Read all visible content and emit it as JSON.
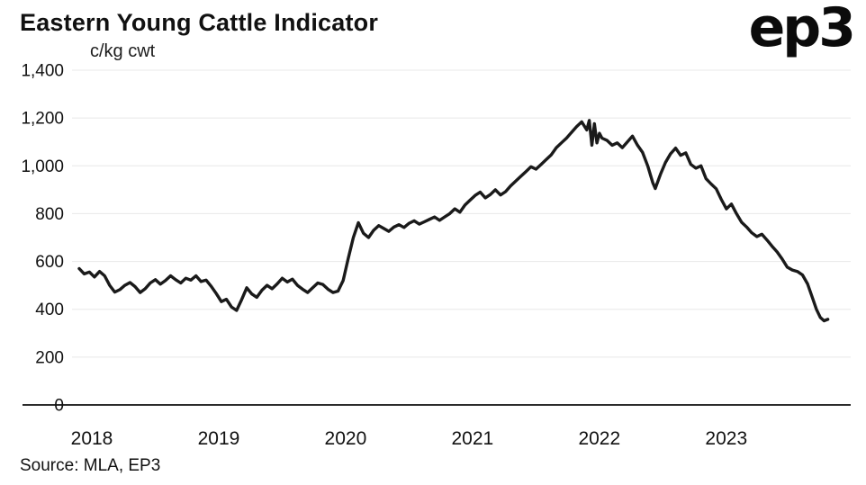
{
  "header": {
    "title": "Eastern Young Cattle Indicator",
    "logo": "ep3"
  },
  "footer": {
    "source": "Source: MLA, EP3"
  },
  "chart_data": {
    "type": "line",
    "title": "Eastern Young Cattle Indicator",
    "xlabel": "",
    "ylabel": "c/kg cwt",
    "ylim": [
      0,
      1400
    ],
    "xlim": [
      2018,
      2024.08
    ],
    "yticks": [
      0,
      200,
      400,
      600,
      800,
      1000,
      1200,
      1400
    ],
    "ytick_labels": [
      "0",
      "200",
      "400",
      "600",
      "800",
      "1,000",
      "1,200",
      "1,400"
    ],
    "xticks": [
      2018,
      2019,
      2020,
      2021,
      2022,
      2023
    ],
    "xtick_labels": [
      "2018",
      "2019",
      "2020",
      "2021",
      "2022",
      "2023"
    ],
    "grid": "horizontal",
    "legend": "none",
    "line_color": "#1a1a1a",
    "grid_color": "#e8e8e8",
    "axis_color": "#2b2b2b",
    "series": [
      {
        "name": "EYCI (c/kg cwt)",
        "points": [
          [
            2018.0,
            570
          ],
          [
            2018.04,
            548
          ],
          [
            2018.08,
            556
          ],
          [
            2018.12,
            535
          ],
          [
            2018.16,
            558
          ],
          [
            2018.2,
            540
          ],
          [
            2018.24,
            500
          ],
          [
            2018.28,
            472
          ],
          [
            2018.32,
            482
          ],
          [
            2018.36,
            500
          ],
          [
            2018.4,
            512
          ],
          [
            2018.44,
            495
          ],
          [
            2018.48,
            470
          ],
          [
            2018.52,
            486
          ],
          [
            2018.56,
            510
          ],
          [
            2018.6,
            524
          ],
          [
            2018.64,
            505
          ],
          [
            2018.68,
            520
          ],
          [
            2018.72,
            540
          ],
          [
            2018.76,
            524
          ],
          [
            2018.8,
            510
          ],
          [
            2018.84,
            530
          ],
          [
            2018.88,
            522
          ],
          [
            2018.92,
            540
          ],
          [
            2018.96,
            516
          ],
          [
            2019.0,
            522
          ],
          [
            2019.04,
            496
          ],
          [
            2019.08,
            466
          ],
          [
            2019.12,
            432
          ],
          [
            2019.16,
            442
          ],
          [
            2019.2,
            410
          ],
          [
            2019.24,
            395
          ],
          [
            2019.28,
            440
          ],
          [
            2019.32,
            490
          ],
          [
            2019.36,
            464
          ],
          [
            2019.4,
            450
          ],
          [
            2019.44,
            480
          ],
          [
            2019.48,
            500
          ],
          [
            2019.52,
            486
          ],
          [
            2019.56,
            506
          ],
          [
            2019.6,
            530
          ],
          [
            2019.64,
            514
          ],
          [
            2019.68,
            526
          ],
          [
            2019.72,
            500
          ],
          [
            2019.76,
            484
          ],
          [
            2019.8,
            470
          ],
          [
            2019.84,
            490
          ],
          [
            2019.88,
            510
          ],
          [
            2019.92,
            504
          ],
          [
            2019.96,
            484
          ],
          [
            2020.0,
            470
          ],
          [
            2020.04,
            476
          ],
          [
            2020.08,
            520
          ],
          [
            2020.12,
            612
          ],
          [
            2020.16,
            700
          ],
          [
            2020.2,
            762
          ],
          [
            2020.24,
            718
          ],
          [
            2020.28,
            700
          ],
          [
            2020.32,
            730
          ],
          [
            2020.36,
            750
          ],
          [
            2020.4,
            738
          ],
          [
            2020.44,
            726
          ],
          [
            2020.48,
            744
          ],
          [
            2020.52,
            754
          ],
          [
            2020.56,
            742
          ],
          [
            2020.6,
            760
          ],
          [
            2020.64,
            770
          ],
          [
            2020.68,
            756
          ],
          [
            2020.72,
            766
          ],
          [
            2020.76,
            776
          ],
          [
            2020.8,
            786
          ],
          [
            2020.84,
            772
          ],
          [
            2020.88,
            786
          ],
          [
            2020.92,
            800
          ],
          [
            2020.96,
            820
          ],
          [
            2021.0,
            806
          ],
          [
            2021.04,
            836
          ],
          [
            2021.08,
            856
          ],
          [
            2021.12,
            876
          ],
          [
            2021.16,
            890
          ],
          [
            2021.2,
            866
          ],
          [
            2021.24,
            880
          ],
          [
            2021.28,
            900
          ],
          [
            2021.32,
            878
          ],
          [
            2021.36,
            892
          ],
          [
            2021.4,
            916
          ],
          [
            2021.44,
            936
          ],
          [
            2021.48,
            956
          ],
          [
            2021.52,
            976
          ],
          [
            2021.56,
            996
          ],
          [
            2021.6,
            986
          ],
          [
            2021.64,
            1006
          ],
          [
            2021.68,
            1026
          ],
          [
            2021.72,
            1046
          ],
          [
            2021.76,
            1076
          ],
          [
            2021.8,
            1096
          ],
          [
            2021.84,
            1116
          ],
          [
            2021.88,
            1140
          ],
          [
            2021.92,
            1164
          ],
          [
            2021.96,
            1184
          ],
          [
            2022.0,
            1150
          ],
          [
            2022.02,
            1190
          ],
          [
            2022.04,
            1086
          ],
          [
            2022.06,
            1176
          ],
          [
            2022.08,
            1096
          ],
          [
            2022.1,
            1136
          ],
          [
            2022.12,
            1116
          ],
          [
            2022.16,
            1106
          ],
          [
            2022.2,
            1086
          ],
          [
            2022.24,
            1096
          ],
          [
            2022.28,
            1076
          ],
          [
            2022.32,
            1100
          ],
          [
            2022.36,
            1124
          ],
          [
            2022.4,
            1086
          ],
          [
            2022.44,
            1056
          ],
          [
            2022.48,
            1000
          ],
          [
            2022.52,
            930
          ],
          [
            2022.54,
            905
          ],
          [
            2022.58,
            964
          ],
          [
            2022.62,
            1014
          ],
          [
            2022.66,
            1050
          ],
          [
            2022.7,
            1074
          ],
          [
            2022.74,
            1044
          ],
          [
            2022.78,
            1054
          ],
          [
            2022.82,
            1006
          ],
          [
            2022.86,
            990
          ],
          [
            2022.9,
            1000
          ],
          [
            2022.94,
            946
          ],
          [
            2022.98,
            924
          ],
          [
            2023.02,
            904
          ],
          [
            2023.06,
            860
          ],
          [
            2023.1,
            820
          ],
          [
            2023.14,
            840
          ],
          [
            2023.18,
            800
          ],
          [
            2023.22,
            764
          ],
          [
            2023.26,
            744
          ],
          [
            2023.3,
            720
          ],
          [
            2023.34,
            704
          ],
          [
            2023.38,
            714
          ],
          [
            2023.42,
            690
          ],
          [
            2023.46,
            664
          ],
          [
            2023.5,
            640
          ],
          [
            2023.54,
            610
          ],
          [
            2023.58,
            576
          ],
          [
            2023.62,
            564
          ],
          [
            2023.66,
            558
          ],
          [
            2023.7,
            544
          ],
          [
            2023.74,
            506
          ],
          [
            2023.78,
            446
          ],
          [
            2023.81,
            400
          ],
          [
            2023.84,
            366
          ],
          [
            2023.87,
            352
          ],
          [
            2023.9,
            358
          ]
        ]
      }
    ]
  }
}
